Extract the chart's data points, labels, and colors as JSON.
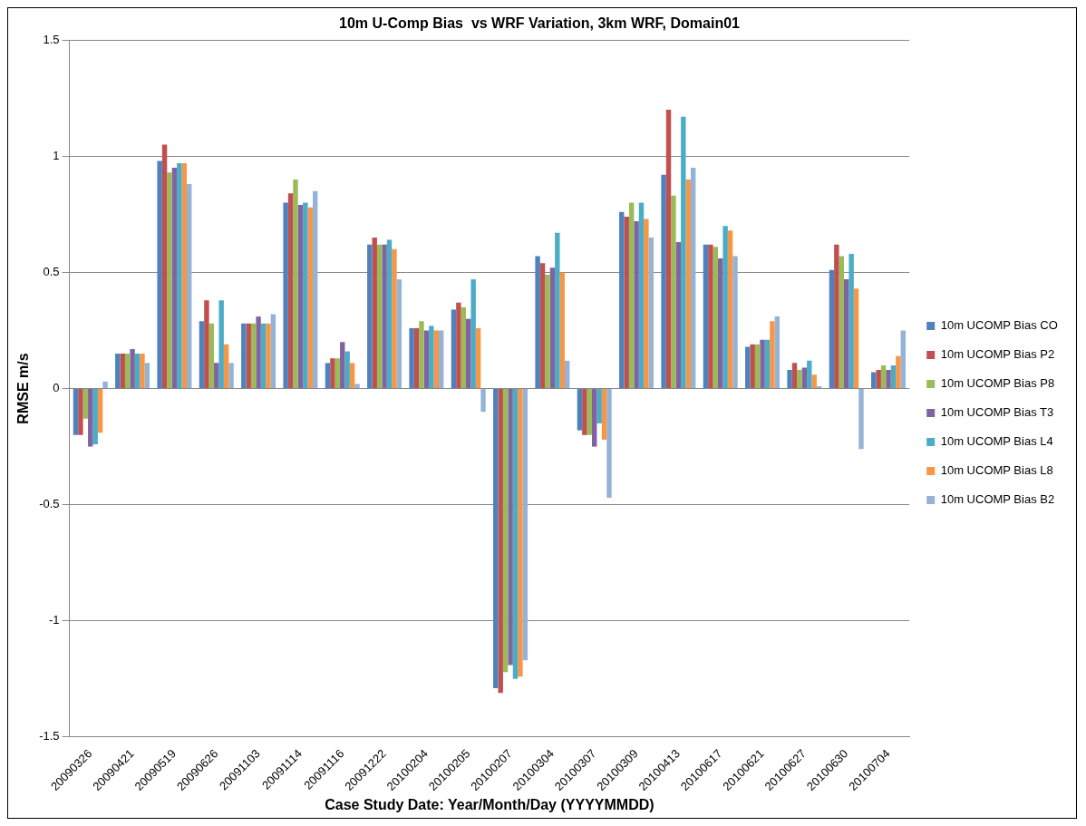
{
  "chart_data": {
    "type": "bar",
    "title": "10m U-Comp Bias  vs WRF Variation, 3km WRF, Domain01",
    "xlabel": "Case Study Date: Year/Month/Day (YYYYMMDD)",
    "ylabel": "RMSE m/s",
    "categories": [
      "20090326",
      "20090421",
      "20090519",
      "20090626",
      "20091103",
      "20091114",
      "20091116",
      "20091222",
      "20100204",
      "20100205",
      "20100207",
      "20100304",
      "20100307",
      "20100309",
      "20100413",
      "20100617",
      "20100621",
      "20100627",
      "20100630",
      "20100704"
    ],
    "series": [
      {
        "name": "10m UCOMP Bias CO",
        "color": "#4f81bd",
        "values": [
          -0.2,
          0.15,
          0.98,
          0.29,
          0.28,
          0.8,
          0.11,
          0.62,
          0.26,
          0.34,
          -1.29,
          0.57,
          -0.18,
          0.76,
          0.92,
          0.62,
          0.18,
          0.08,
          0.51,
          0.07
        ]
      },
      {
        "name": "10m UCOMP Bias P2",
        "color": "#c0504d",
        "values": [
          -0.2,
          0.15,
          1.05,
          0.38,
          0.28,
          0.84,
          0.13,
          0.65,
          0.26,
          0.37,
          -1.31,
          0.54,
          -0.2,
          0.74,
          1.2,
          0.62,
          0.19,
          0.11,
          0.62,
          0.08
        ]
      },
      {
        "name": "10m UCOMP Bias P8",
        "color": "#9bbb59",
        "values": [
          -0.13,
          0.15,
          0.93,
          0.28,
          0.28,
          0.9,
          0.13,
          0.62,
          0.29,
          0.35,
          -1.22,
          0.49,
          -0.2,
          0.8,
          0.83,
          0.61,
          0.19,
          0.08,
          0.57,
          0.1
        ]
      },
      {
        "name": "10m UCOMP Bias T3",
        "color": "#8064a2",
        "values": [
          -0.25,
          0.17,
          0.95,
          0.11,
          0.31,
          0.79,
          0.2,
          0.62,
          0.25,
          0.3,
          -1.19,
          0.52,
          -0.25,
          0.72,
          0.63,
          0.56,
          0.21,
          0.09,
          0.47,
          0.08
        ]
      },
      {
        "name": "10m UCOMP Bias L4",
        "color": "#4bacc6",
        "values": [
          -0.24,
          0.15,
          0.97,
          0.38,
          0.28,
          0.8,
          0.16,
          0.64,
          0.27,
          0.47,
          -1.25,
          0.67,
          -0.15,
          0.8,
          1.17,
          0.7,
          0.21,
          0.12,
          0.58,
          0.1
        ]
      },
      {
        "name": "10m UCOMP Bias L8",
        "color": "#f79646",
        "values": [
          -0.19,
          0.15,
          0.97,
          0.19,
          0.28,
          0.78,
          0.11,
          0.6,
          0.25,
          0.26,
          -1.24,
          0.5,
          -0.22,
          0.73,
          0.9,
          0.68,
          0.29,
          0.06,
          0.43,
          0.14
        ]
      },
      {
        "name": "10m UCOMP Bias B2",
        "color": "#95b3d7",
        "values": [
          0.03,
          0.11,
          0.88,
          0.11,
          0.32,
          0.85,
          0.02,
          0.47,
          0.25,
          -0.1,
          -1.17,
          0.12,
          -0.47,
          0.65,
          0.95,
          0.57,
          0.31,
          0.01,
          -0.26,
          0.25
        ]
      }
    ],
    "ylim": [
      -1.5,
      1.5
    ],
    "yticks": [
      -1.5,
      -1,
      -0.5,
      0,
      0.5,
      1,
      1.5
    ],
    "grid": "y",
    "legend": "right"
  }
}
